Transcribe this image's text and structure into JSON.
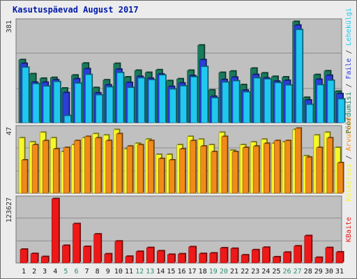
{
  "title": "Kasutuspäevad August 2017",
  "colors": {
    "hits": "#1a7a5c",
    "files": "#2a3ed8",
    "pages": "#20c8f0",
    "visits": "#f7f72a",
    "sites": "#f08a18",
    "kbytes": "#ee1818",
    "weekday_label": "#111111",
    "weekend_label": "#2e8e6e",
    "plot_bg": "#c0c0c0"
  },
  "chart_data": [
    {
      "type": "bar",
      "panel": "top",
      "ymax_label": "381",
      "right_labels": [
        {
          "text": "Pöördumisi",
          "color": "#1a7a5c"
        },
        {
          "text": " / ",
          "color": "#333333"
        },
        {
          "text": "Faile",
          "color": "#2a3ed8"
        },
        {
          "text": " / ",
          "color": "#333333"
        },
        {
          "text": "Lehekülgi",
          "color": "#20c8f0"
        }
      ],
      "categories": [
        "1",
        "2",
        "3",
        "4",
        "5",
        "6",
        "7",
        "8",
        "9",
        "10",
        "11",
        "12",
        "13",
        "14",
        "15",
        "16",
        "17",
        "18",
        "19",
        "20",
        "21",
        "22",
        "23",
        "24",
        "25",
        "26",
        "27",
        "28",
        "29",
        "30",
        "31"
      ],
      "series": [
        {
          "name": "Pöördumisi",
          "values": [
            237,
            184,
            167,
            170,
            130,
            179,
            224,
            132,
            161,
            223,
            172,
            197,
            189,
            199,
            158,
            165,
            197,
            292,
            123,
            189,
            194,
            143,
            205,
            187,
            174,
            172,
            381,
            95,
            181,
            195,
            118
          ]
        },
        {
          "name": "Faile",
          "values": [
            223,
            152,
            152,
            161,
            113,
            165,
            203,
            112,
            142,
            201,
            151,
            174,
            167,
            183,
            136,
            149,
            177,
            237,
            99,
            162,
            171,
            122,
            181,
            168,
            156,
            159,
            367,
            85,
            163,
            178,
            109
          ]
        },
        {
          "name": "Lehekülgi",
          "values": [
            208,
            146,
            137,
            154,
            26,
            148,
            181,
            104,
            134,
            188,
            132,
            168,
            161,
            179,
            126,
            138,
            172,
            211,
            93,
            152,
            157,
            115,
            168,
            164,
            150,
            141,
            350,
            68,
            142,
            159,
            89
          ]
        }
      ]
    },
    {
      "type": "bar",
      "panel": "middle",
      "ymax_label": "47",
      "right_labels": [
        {
          "text": "Külastusi",
          "color": "#f7f72a"
        },
        {
          "text": " / ",
          "color": "#333333"
        },
        {
          "text": "Arvuteid",
          "color": "#f08a18"
        }
      ],
      "categories": [
        "1",
        "2",
        "3",
        "4",
        "5",
        "6",
        "7",
        "8",
        "9",
        "10",
        "11",
        "12",
        "13",
        "14",
        "15",
        "16",
        "17",
        "18",
        "19",
        "20",
        "21",
        "22",
        "23",
        "24",
        "25",
        "26",
        "27",
        "28",
        "29",
        "30",
        "31"
      ],
      "series": [
        {
          "name": "Külastusi",
          "values": [
            40,
            37,
            44,
            40,
            30,
            35,
            40,
            43,
            42,
            46,
            32,
            36,
            39,
            28,
            28,
            35,
            41,
            39,
            35,
            44,
            31,
            35,
            37,
            39,
            36,
            37,
            46,
            27,
            42,
            44,
            33
          ]
        },
        {
          "name": "Arvuteid",
          "values": [
            24,
            35,
            38,
            32,
            33,
            38,
            41,
            40,
            38,
            43,
            34,
            35,
            38,
            25,
            24,
            32,
            38,
            34,
            30,
            41,
            30,
            33,
            34,
            36,
            38,
            38,
            47,
            26,
            33,
            40,
            22
          ]
        }
      ]
    },
    {
      "type": "bar",
      "panel": "bottom",
      "ymax_label": "123627",
      "right_labels": [
        {
          "text": "KBaite",
          "color": "#ee1818"
        }
      ],
      "categories": [
        "1",
        "2",
        "3",
        "4",
        "5",
        "6",
        "7",
        "8",
        "9",
        "10",
        "11",
        "12",
        "13",
        "14",
        "15",
        "16",
        "17",
        "18",
        "19",
        "20",
        "21",
        "22",
        "23",
        "24",
        "25",
        "26",
        "27",
        "28",
        "29",
        "30",
        "31"
      ],
      "series": [
        {
          "name": "KBaite",
          "values": [
            25000,
            17000,
            11500,
            118000,
            32000,
            72000,
            30000,
            53000,
            16500,
            40000,
            12000,
            21000,
            28000,
            22000,
            15500,
            16500,
            29500,
            17000,
            18000,
            27500,
            26500,
            14500,
            24000,
            28500,
            11000,
            19500,
            31000,
            50000,
            10000,
            28000,
            20000
          ]
        }
      ]
    }
  ]
}
